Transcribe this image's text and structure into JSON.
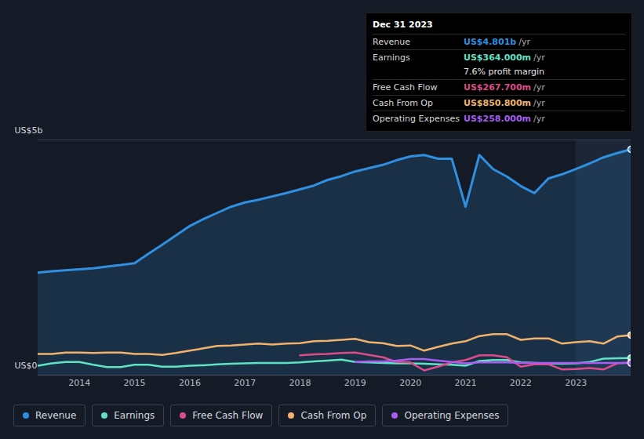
{
  "chart_data": {
    "type": "line",
    "x": [
      2013.25,
      2013.5,
      2013.75,
      2014,
      2014.25,
      2014.5,
      2014.75,
      2015,
      2015.25,
      2015.5,
      2015.75,
      2016,
      2016.25,
      2016.5,
      2016.75,
      2017,
      2017.25,
      2017.5,
      2017.75,
      2018,
      2018.25,
      2018.5,
      2018.75,
      2019,
      2019.25,
      2019.5,
      2019.75,
      2020,
      2020.25,
      2020.5,
      2020.75,
      2021,
      2021.25,
      2021.5,
      2021.75,
      2022,
      2022.25,
      2022.5,
      2022.75,
      2023,
      2023.25,
      2023.5,
      2023.75,
      2024
    ],
    "series": [
      {
        "name": "Revenue",
        "type": "area",
        "color": "#2f8fe0",
        "values": [
          2.18,
          2.21,
          2.23,
          2.25,
          2.27,
          2.31,
          2.34,
          2.38,
          2.58,
          2.77,
          2.97,
          3.17,
          3.32,
          3.45,
          3.58,
          3.67,
          3.73,
          3.8,
          3.87,
          3.95,
          4.03,
          4.15,
          4.23,
          4.33,
          4.4,
          4.47,
          4.57,
          4.65,
          4.68,
          4.6,
          4.6,
          3.58,
          4.68,
          4.38,
          4.22,
          4.02,
          3.87,
          4.18,
          4.27,
          4.38,
          4.5,
          4.63,
          4.72,
          4.801
        ]
      },
      {
        "name": "Earnings",
        "type": "line",
        "color": "#5fe3c4",
        "values": [
          0.2,
          0.25,
          0.28,
          0.28,
          0.22,
          0.17,
          0.17,
          0.22,
          0.22,
          0.18,
          0.18,
          0.2,
          0.21,
          0.23,
          0.24,
          0.25,
          0.26,
          0.26,
          0.26,
          0.27,
          0.29,
          0.31,
          0.33,
          0.28,
          0.27,
          0.26,
          0.25,
          0.25,
          0.24,
          0.23,
          0.22,
          0.2,
          0.3,
          0.32,
          0.32,
          0.27,
          0.26,
          0.25,
          0.24,
          0.25,
          0.28,
          0.35,
          0.36,
          0.364
        ]
      },
      {
        "name": "Free Cash Flow",
        "type": "line",
        "color": "#dc4c8a",
        "values": [
          null,
          null,
          null,
          null,
          null,
          null,
          null,
          null,
          null,
          null,
          null,
          null,
          null,
          null,
          null,
          null,
          null,
          null,
          null,
          0.42,
          0.44,
          0.45,
          0.47,
          0.48,
          0.43,
          0.38,
          0.28,
          0.27,
          0.1,
          0.18,
          0.27,
          0.32,
          0.42,
          0.42,
          0.38,
          0.18,
          0.23,
          0.23,
          0.12,
          0.13,
          0.15,
          0.12,
          0.25,
          0.2677
        ]
      },
      {
        "name": "Cash From Op",
        "type": "line",
        "color": "#f1b36c",
        "values": [
          0.45,
          0.45,
          0.48,
          0.48,
          0.47,
          0.48,
          0.48,
          0.45,
          0.45,
          0.43,
          0.47,
          0.52,
          0.57,
          0.62,
          0.63,
          0.65,
          0.67,
          0.65,
          0.67,
          0.68,
          0.72,
          0.73,
          0.75,
          0.77,
          0.7,
          0.68,
          0.62,
          0.63,
          0.52,
          0.6,
          0.67,
          0.72,
          0.83,
          0.87,
          0.87,
          0.75,
          0.78,
          0.78,
          0.67,
          0.7,
          0.72,
          0.67,
          0.82,
          0.8508
        ]
      },
      {
        "name": "Operating Expenses",
        "type": "line",
        "color": "#a95cf2",
        "values": [
          null,
          null,
          null,
          null,
          null,
          null,
          null,
          null,
          null,
          null,
          null,
          null,
          null,
          null,
          null,
          null,
          null,
          null,
          null,
          null,
          null,
          null,
          null,
          0.28,
          0.29,
          0.29,
          0.31,
          0.34,
          0.34,
          0.31,
          0.28,
          0.25,
          0.27,
          0.27,
          0.27,
          0.26,
          0.26,
          0.26,
          0.26,
          0.26,
          0.26,
          0.26,
          0.26,
          0.258
        ]
      }
    ],
    "xlim": [
      2013.25,
      2024
    ],
    "xticks": [
      2014,
      2015,
      2016,
      2017,
      2018,
      2019,
      2020,
      2021,
      2022,
      2023
    ],
    "ylim": [
      0,
      5
    ],
    "yticks": [
      {
        "value": 0,
        "label": "US$0"
      },
      {
        "value": 5,
        "label": "US$5b"
      }
    ],
    "grid": true,
    "shaded_x": [
      2023,
      2024
    ],
    "annotations": {
      "date": "Dec 31 2023",
      "rows": [
        {
          "label": "Revenue",
          "value": "US$4.801b",
          "unit": "/yr"
        },
        {
          "label": "Earnings",
          "value": "US$364.000m",
          "unit": "/yr"
        },
        {
          "note": "7.6% profit margin"
        },
        {
          "label": "Free Cash Flow",
          "value": "US$267.700m",
          "unit": "/yr"
        },
        {
          "label": "Cash From Op",
          "value": "US$850.800m",
          "unit": "/yr"
        },
        {
          "label": "Operating Expenses",
          "value": "US$258.000m",
          "unit": "/yr"
        }
      ]
    }
  }
}
